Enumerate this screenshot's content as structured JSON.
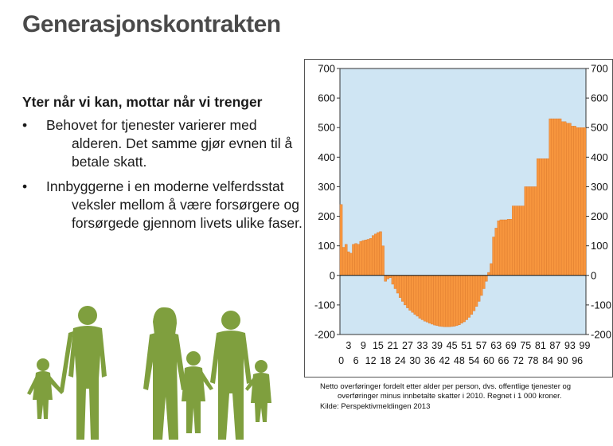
{
  "slide": {
    "title": "Generasjonskontrakten",
    "subtitle": "Yter når vi kan, mottar når vi trenger",
    "bullets": [
      {
        "marker": "•",
        "first": "Behovet for tjenester varierer med",
        "rest": [
          "alderen. Det samme gjør evnen til å",
          "betale skatt."
        ]
      },
      {
        "marker": "•",
        "first": "Innbyggerne i en moderne velferdsstat",
        "rest": [
          "veksler mellom å være forsørgere og",
          "forsørgede gjennom livets ulike faser."
        ]
      }
    ],
    "caption_line1": "Netto overføringer fordelt etter alder per person, dvs. offentlige tjenester og",
    "caption_line2": "overføringer minus innbetalte skatter i 2010.  Regnet i 1 000 kroner.",
    "caption_source": "Kilde: Perspektivmeldingen 2013"
  },
  "colors": {
    "bar_fill": "#f7963e",
    "bar_stroke": "#d9762a",
    "plot_bg": "#cfe5f3",
    "figure_green": "#7f9f3e"
  },
  "chart_data": {
    "type": "bar",
    "title": "",
    "xlabel": "",
    "ylabel": "",
    "ylim": [
      -200,
      700
    ],
    "yticks": [
      -200,
      -100,
      0,
      100,
      200,
      300,
      400,
      500,
      600,
      700
    ],
    "y_axis_right": true,
    "xtick_labels_row1": [
      "3",
      "9",
      "15",
      "21",
      "27",
      "33",
      "39",
      "45",
      "51",
      "57",
      "63",
      "69",
      "75",
      "81",
      "87",
      "93",
      "99"
    ],
    "xtick_labels_row2": [
      "0",
      "6",
      "12",
      "18",
      "24",
      "30",
      "36",
      "42",
      "48",
      "54",
      "60",
      "66",
      "72",
      "78",
      "84",
      "90",
      "96"
    ],
    "x": [
      0,
      1,
      2,
      3,
      4,
      5,
      6,
      7,
      8,
      9,
      10,
      11,
      12,
      13,
      14,
      15,
      16,
      17,
      18,
      19,
      20,
      21,
      22,
      23,
      24,
      25,
      26,
      27,
      28,
      29,
      30,
      31,
      32,
      33,
      34,
      35,
      36,
      37,
      38,
      39,
      40,
      41,
      42,
      43,
      44,
      45,
      46,
      47,
      48,
      49,
      50,
      51,
      52,
      53,
      54,
      55,
      56,
      57,
      58,
      59,
      60,
      61,
      62,
      63,
      64,
      65,
      66,
      67,
      68,
      69,
      70,
      71,
      72,
      73,
      74,
      75,
      76,
      77,
      78,
      79,
      80,
      81,
      82,
      83,
      84,
      85,
      86,
      87,
      88,
      89,
      90,
      91,
      92,
      93,
      94,
      95,
      96,
      97,
      98,
      99
    ],
    "values": [
      240,
      95,
      105,
      80,
      75,
      105,
      108,
      105,
      115,
      118,
      120,
      122,
      125,
      135,
      140,
      145,
      148,
      100,
      -20,
      -12,
      -8,
      -30,
      -45,
      -60,
      -75,
      -88,
      -100,
      -110,
      -118,
      -125,
      -132,
      -138,
      -145,
      -150,
      -155,
      -158,
      -162,
      -165,
      -168,
      -170,
      -172,
      -173,
      -174,
      -174,
      -174,
      -173,
      -172,
      -170,
      -167,
      -162,
      -157,
      -150,
      -142,
      -132,
      -120,
      -105,
      -88,
      -68,
      -45,
      -20,
      10,
      40,
      130,
      160,
      185,
      188,
      188,
      188,
      190,
      190,
      235,
      235,
      235,
      235,
      235,
      300,
      300,
      300,
      300,
      300,
      395,
      395,
      395,
      395,
      395,
      530,
      530,
      530,
      530,
      530,
      520,
      520,
      515,
      515,
      505,
      505,
      500,
      500,
      500,
      500
    ],
    "grid": false,
    "legend": "none"
  }
}
